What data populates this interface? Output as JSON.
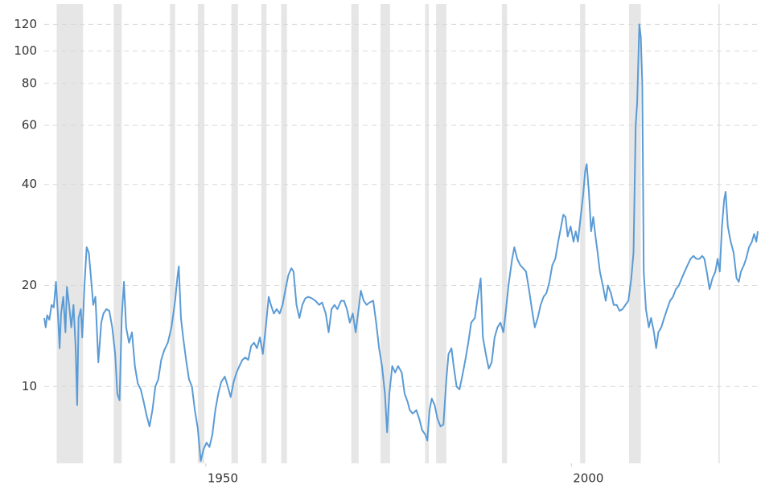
{
  "chart_data": {
    "type": "line",
    "log_y": true,
    "grid": true,
    "color": "#5b9bd5",
    "shade_color": "#e6e6e6",
    "shaded_ranges": [
      [
        1929.6,
        1933.2
      ],
      [
        1937.4,
        1938.5
      ],
      [
        1945.1,
        1945.8
      ],
      [
        1948.9,
        1949.8
      ],
      [
        1953.5,
        1954.4
      ],
      [
        1957.6,
        1958.3
      ],
      [
        1960.3,
        1961.1
      ],
      [
        1969.9,
        1970.9
      ],
      [
        1973.9,
        1975.2
      ],
      [
        1980.0,
        1980.5
      ],
      [
        1981.5,
        1982.9
      ],
      [
        1990.5,
        1991.2
      ],
      [
        2001.2,
        2001.9
      ],
      [
        2007.9,
        2009.5
      ],
      [
        2020.1,
        2020.3
      ]
    ],
    "xlim": [
      1927.9,
      2025.5
    ],
    "xticks": [
      1950,
      2000
    ],
    "ylim": [
      5.9,
      138
    ],
    "yticks": [
      10,
      20,
      40,
      60,
      80,
      100,
      120
    ],
    "x": [
      1927.9,
      1928.1,
      1928.3,
      1928.6,
      1928.9,
      1929.2,
      1929.5,
      1929.8,
      1930.0,
      1930.2,
      1930.5,
      1930.8,
      1931.0,
      1931.3,
      1931.6,
      1931.9,
      1932.2,
      1932.4,
      1932.6,
      1932.9,
      1933.1,
      1933.4,
      1933.7,
      1934.0,
      1934.3,
      1934.6,
      1934.9,
      1935.3,
      1935.7,
      1936.0,
      1936.4,
      1936.8,
      1937.2,
      1937.6,
      1937.9,
      1938.2,
      1938.5,
      1938.8,
      1939.1,
      1939.5,
      1939.9,
      1940.3,
      1940.7,
      1941.1,
      1941.5,
      1941.9,
      1942.3,
      1942.7,
      1943.1,
      1943.5,
      1943.9,
      1944.3,
      1944.8,
      1945.3,
      1945.8,
      1946.1,
      1946.3,
      1946.6,
      1946.9,
      1947.3,
      1947.7,
      1948.1,
      1948.5,
      1948.9,
      1949.3,
      1949.7,
      1950.1,
      1950.5,
      1950.9,
      1951.3,
      1951.7,
      1952.1,
      1952.6,
      1953.0,
      1953.4,
      1953.8,
      1954.2,
      1954.6,
      1955.0,
      1955.4,
      1955.8,
      1956.2,
      1956.6,
      1957.0,
      1957.4,
      1957.8,
      1958.2,
      1958.6,
      1958.9,
      1959.3,
      1959.7,
      1960.1,
      1960.5,
      1960.9,
      1961.3,
      1961.7,
      1962.0,
      1962.4,
      1962.8,
      1963.2,
      1963.6,
      1964.0,
      1964.5,
      1965.0,
      1965.5,
      1965.9,
      1966.4,
      1966.8,
      1967.2,
      1967.6,
      1968.0,
      1968.5,
      1968.9,
      1969.3,
      1969.7,
      1970.1,
      1970.5,
      1970.9,
      1971.2,
      1971.6,
      1972.0,
      1972.4,
      1972.9,
      1973.3,
      1973.7,
      1974.1,
      1974.5,
      1974.8,
      1975.1,
      1975.5,
      1975.9,
      1976.3,
      1976.8,
      1977.2,
      1977.6,
      1977.9,
      1978.3,
      1978.8,
      1979.2,
      1979.6,
      1980.0,
      1980.3,
      1980.6,
      1980.9,
      1981.3,
      1981.7,
      1982.1,
      1982.5,
      1982.9,
      1983.2,
      1983.6,
      1983.9,
      1984.3,
      1984.7,
      1985.1,
      1985.5,
      1985.9,
      1986.3,
      1986.8,
      1987.2,
      1987.6,
      1987.9,
      1988.3,
      1988.7,
      1989.1,
      1989.5,
      1989.9,
      1990.3,
      1990.7,
      1991.0,
      1991.4,
      1991.9,
      1992.2,
      1992.6,
      1993.0,
      1993.4,
      1993.8,
      1994.2,
      1994.6,
      1995.0,
      1995.4,
      1995.8,
      1996.2,
      1996.6,
      1997.0,
      1997.4,
      1997.8,
      1998.2,
      1998.6,
      1998.9,
      1999.2,
      1999.5,
      1999.9,
      2000.3,
      2000.6,
      2000.9,
      2001.2,
      2001.6,
      2001.9,
      2002.1,
      2002.4,
      2002.7,
      2003.0,
      2003.3,
      2003.6,
      2003.9,
      2004.3,
      2004.7,
      2005.0,
      2005.4,
      2005.8,
      2006.2,
      2006.6,
      2007.0,
      2007.4,
      2007.8,
      2008.2,
      2008.5,
      2008.8,
      2009.0,
      2009.3,
      2009.5,
      2009.7,
      2009.9,
      2010.2,
      2010.6,
      2010.9,
      2011.3,
      2011.6,
      2011.9,
      2012.3,
      2012.7,
      2013.1,
      2013.5,
      2013.9,
      2014.3,
      2014.7,
      2015.1,
      2015.5,
      2015.9,
      2016.3,
      2016.7,
      2017.1,
      2017.5,
      2017.9,
      2018.2,
      2018.6,
      2018.9,
      2019.3,
      2019.7,
      2020.0,
      2020.3,
      2020.6,
      2020.9,
      2021.1,
      2021.4,
      2021.8,
      2022.2,
      2022.6,
      2022.9,
      2023.2,
      2023.6,
      2023.9,
      2024.3,
      2024.7,
      2025.0,
      2025.3,
      2025.5
    ],
    "values": [
      16,
      15,
      16.3,
      15.8,
      17.5,
      17.2,
      20.5,
      16,
      13,
      16.5,
      18.5,
      14.5,
      19.8,
      17.5,
      15,
      17.5,
      13,
      8.8,
      16,
      17,
      14,
      20,
      26,
      25,
      21,
      17.5,
      18.5,
      11.8,
      15.5,
      16.5,
      17,
      16.8,
      15,
      12.5,
      9.5,
      9.1,
      16,
      20.5,
      15,
      13.5,
      14.5,
      11.5,
      10.2,
      9.8,
      9,
      8.2,
      7.6,
      8.5,
      10,
      10.5,
      12,
      12.8,
      13.5,
      15,
      18,
      21,
      22.8,
      16,
      14,
      12,
      10.5,
      10,
      8.5,
      7.5,
      6,
      6.5,
      6.8,
      6.6,
      7.2,
      8.5,
      9.5,
      10.3,
      10.7,
      10,
      9.3,
      10.3,
      11,
      11.5,
      12,
      12.2,
      12,
      13.2,
      13.5,
      13,
      14,
      12.5,
      15,
      18.5,
      17.5,
      16.5,
      17,
      16.5,
      17.5,
      19.5,
      21.5,
      22.5,
      22,
      17.5,
      16,
      17.5,
      18.3,
      18.5,
      18.3,
      18,
      17.5,
      17.8,
      16.5,
      14.5,
      17,
      17.5,
      17,
      18,
      18,
      17,
      15.5,
      16.5,
      14.5,
      17,
      19.3,
      18,
      17.5,
      17.8,
      18,
      15.5,
      13,
      11.5,
      9.5,
      7.3,
      9.5,
      11.5,
      11,
      11.5,
      11,
      9.5,
      9,
      8.5,
      8.3,
      8.5,
      8,
      7.4,
      7.2,
      6.9,
      8.5,
      9.2,
      8.8,
      8,
      7.6,
      7.7,
      10.5,
      12.5,
      13,
      11.5,
      10,
      9.8,
      10.8,
      12,
      13.5,
      15.5,
      16,
      18.5,
      21,
      14,
      12.5,
      11.3,
      11.8,
      14,
      15,
      15.5,
      14.5,
      16.5,
      20,
      24,
      26,
      24,
      23,
      22.5,
      22,
      19.5,
      17,
      15,
      16,
      17.5,
      18.5,
      19,
      20.5,
      23,
      24,
      27,
      30,
      32.5,
      32,
      28,
      30,
      27,
      29,
      27,
      31,
      37,
      44,
      46,
      38,
      29,
      32,
      28,
      25,
      22,
      20,
      18,
      20,
      19,
      17.5,
      17.5,
      16.8,
      17,
      17.5,
      18,
      21,
      25,
      60,
      70,
      120,
      110,
      80,
      22,
      17,
      15,
      16,
      14.5,
      13,
      14.5,
      15,
      16,
      17,
      18,
      18.5,
      19.5,
      20,
      21,
      22,
      23,
      24,
      24.5,
      24,
      24,
      24.5,
      24,
      21.5,
      19.5,
      21,
      22,
      24,
      22,
      30,
      36,
      38,
      30,
      27,
      25,
      21,
      20.5,
      22,
      23,
      24,
      26,
      27,
      28.5,
      27,
      29
    ]
  }
}
